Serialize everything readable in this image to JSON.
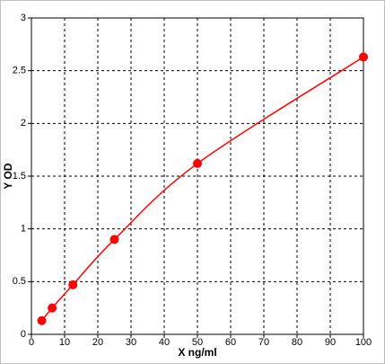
{
  "chart_data": {
    "type": "scatter",
    "x_label": "X ng/ml",
    "y_label": "Y OD",
    "x": [
      3.125,
      6.25,
      12.5,
      25,
      50,
      100
    ],
    "series": [
      {
        "color": "#ff0000",
        "values": [
          0.13,
          0.25,
          0.47,
          0.9,
          1.62,
          2.63
        ]
      }
    ],
    "xlim": [
      0,
      100
    ],
    "xticks": [
      0,
      10,
      20,
      30,
      40,
      50,
      60,
      70,
      80,
      90,
      100
    ],
    "ylim": [
      0,
      3
    ],
    "yticks": [
      0,
      0.5,
      1,
      1.5,
      2,
      2.5,
      3
    ],
    "grid": true,
    "fit_line": true
  }
}
